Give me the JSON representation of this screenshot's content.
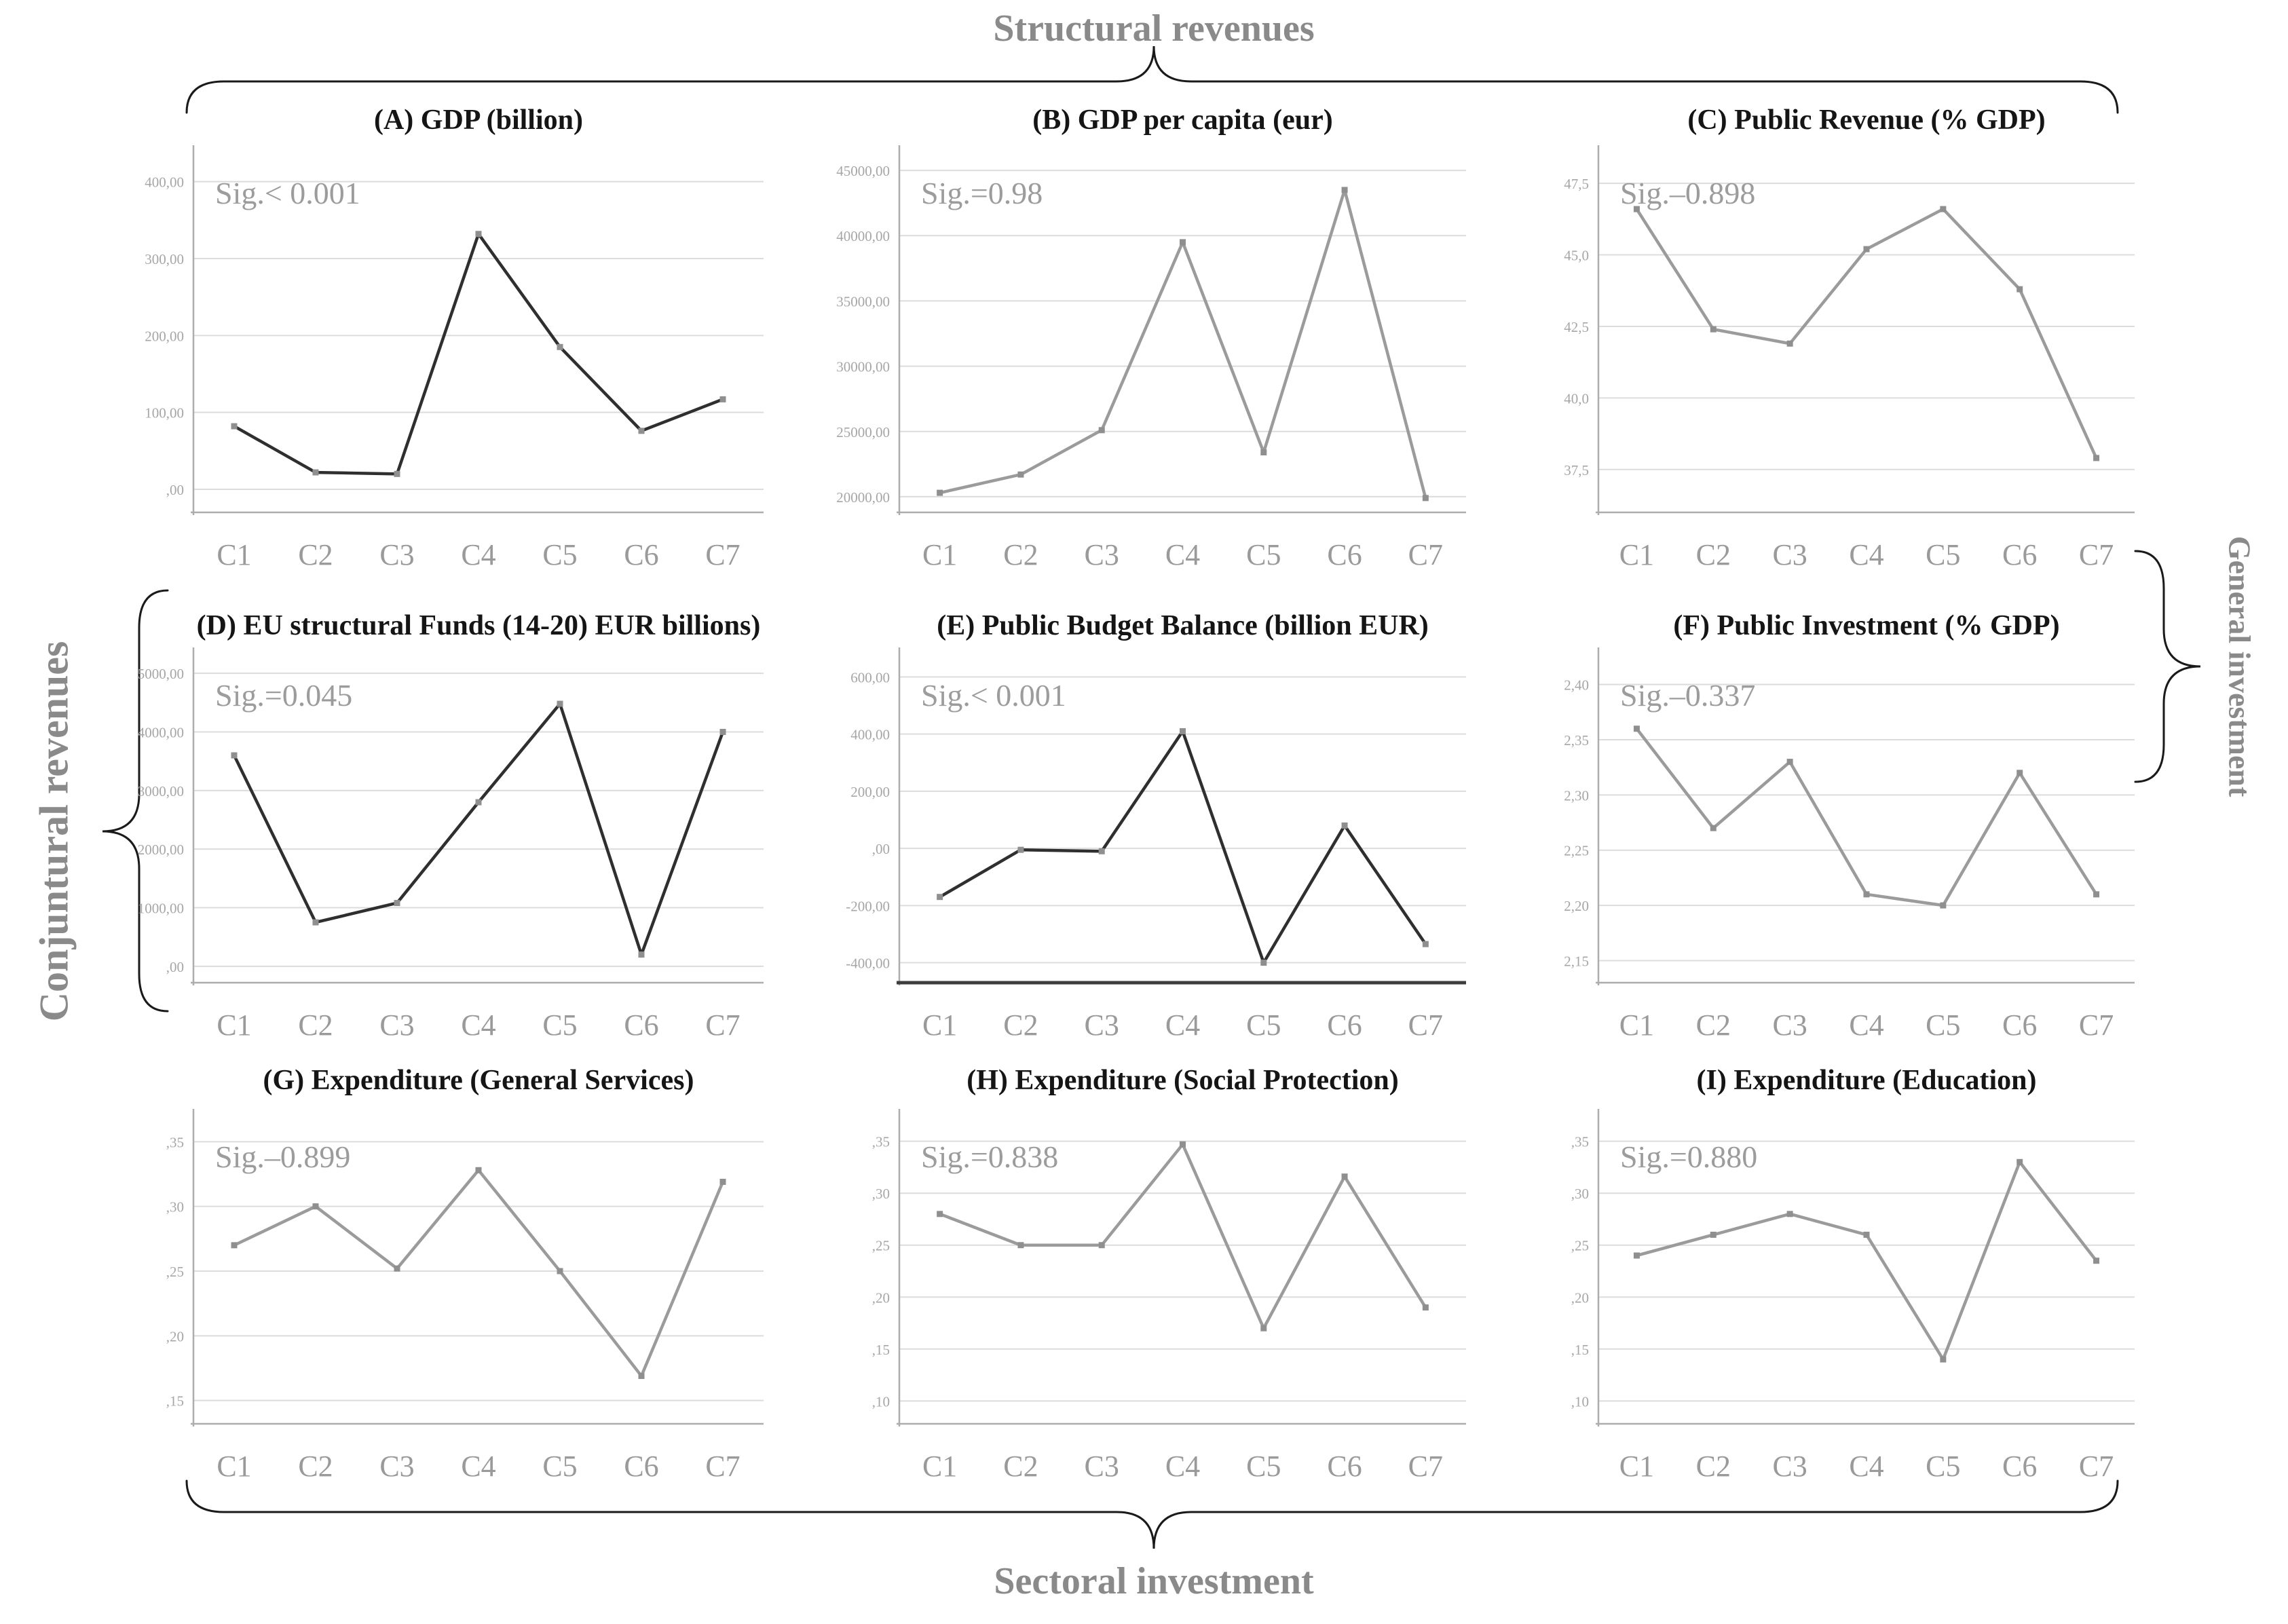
{
  "figure": {
    "top_label": "Structural revenues",
    "bottom_label": "Sectoral investment",
    "left_label": "Conjuntural revenues",
    "right_label": "General investment"
  },
  "colors": {
    "dark_line": "#2f2f2f",
    "gray_line": "#9b9b9b",
    "marker": "#8f8f8f",
    "grid": "#dcdcdc",
    "axis": "#adadad",
    "axis_strong": "#3d3d3d",
    "tick_text": "#a6a6a6",
    "xlabel_text": "#9a9a9a",
    "sig_text": "#9c9c9c",
    "title_text": "#151515",
    "brace": "#1a1a1a",
    "outer_label": "#8a8a8a"
  },
  "x_categories": [
    "C1",
    "C2",
    "C3",
    "C4",
    "C5",
    "C6",
    "C7"
  ],
  "chart_data": [
    {
      "id": "A",
      "type": "line",
      "title": "(A) GDP (billion)",
      "sig": "Sig.< 0.001",
      "categories": [
        "C1",
        "C2",
        "C3",
        "C4",
        "C5",
        "C6",
        "C7"
      ],
      "values": [
        82,
        22,
        20,
        332,
        185,
        76,
        117
      ],
      "ytick_labels": [
        "400,00",
        "300,00",
        "200,00",
        "100,00",
        ",00"
      ],
      "ytick_values": [
        400,
        300,
        200,
        100,
        0
      ],
      "ylim": [
        -30,
        435
      ],
      "line_color": "#2f2f2f",
      "axis_strong": false,
      "grid": true,
      "legend": "none"
    },
    {
      "id": "B",
      "type": "line",
      "title": "(B) GDP per capita (eur)",
      "sig": "Sig.=0.98",
      "categories": [
        "C1",
        "C2",
        "C3",
        "C4",
        "C5",
        "C6",
        "C7"
      ],
      "values": [
        20300,
        21700,
        25100,
        39500,
        23400,
        43500,
        19900
      ],
      "ytick_labels": [
        "45000,00",
        "40000,00",
        "35000,00",
        "30000,00",
        "25000,00",
        "20000,00"
      ],
      "ytick_values": [
        45000,
        40000,
        35000,
        30000,
        25000,
        20000
      ],
      "ylim": [
        18800,
        46200
      ],
      "line_color": "#9b9b9b",
      "axis_strong": false,
      "grid": true,
      "legend": "none"
    },
    {
      "id": "C",
      "type": "line",
      "title": "(C) Public Revenue (% GDP)",
      "sig": "Sig.–0.898",
      "categories": [
        "C1",
        "C2",
        "C3",
        "C4",
        "C5",
        "C6",
        "C7"
      ],
      "values": [
        46.6,
        42.4,
        41.9,
        45.2,
        46.6,
        43.8,
        37.9
      ],
      "ytick_labels": [
        "47,5",
        "45,0",
        "42,5",
        "40,0",
        "37,5"
      ],
      "ytick_values": [
        47.5,
        45.0,
        42.5,
        40.0,
        37.5
      ],
      "ylim": [
        36.0,
        48.5
      ],
      "line_color": "#9b9b9b",
      "axis_strong": false,
      "grid": true,
      "legend": "none"
    },
    {
      "id": "D",
      "type": "line",
      "title": "(D) EU structural Funds (14-20) EUR billions)",
      "sig": "Sig.=0.045",
      "categories": [
        "C1",
        "C2",
        "C3",
        "C4",
        "C5",
        "C6",
        "C7"
      ],
      "values": [
        3600,
        750,
        1080,
        2800,
        4480,
        200,
        4000
      ],
      "ytick_labels": [
        "5000,00",
        "4000,00",
        "3000,00",
        "2000,00",
        "1000,00",
        ",00"
      ],
      "ytick_values": [
        5000,
        4000,
        3000,
        2000,
        1000,
        0
      ],
      "ylim": [
        -280,
        5280
      ],
      "line_color": "#2f2f2f",
      "axis_strong": false,
      "grid": true,
      "legend": "none"
    },
    {
      "id": "E",
      "type": "line",
      "title": "(E) Public Budget Balance (billion EUR)",
      "sig": "Sig.< 0.001",
      "categories": [
        "C1",
        "C2",
        "C3",
        "C4",
        "C5",
        "C6",
        "C7"
      ],
      "values": [
        -170,
        -5,
        -10,
        410,
        -400,
        80,
        -335
      ],
      "ytick_labels": [
        "600,00",
        "400,00",
        "200,00",
        ",00",
        "-200,00",
        "-400,00"
      ],
      "ytick_values": [
        600,
        400,
        200,
        0,
        -200,
        -400
      ],
      "ylim": [
        -470,
        670
      ],
      "line_color": "#2f2f2f",
      "axis_strong": true,
      "grid": true,
      "legend": "none"
    },
    {
      "id": "F",
      "type": "line",
      "title": "(F) Public Investment (% GDP)",
      "sig": "Sig.–0.337",
      "categories": [
        "C1",
        "C2",
        "C3",
        "C4",
        "C5",
        "C6",
        "C7"
      ],
      "values": [
        2.36,
        2.27,
        2.33,
        2.21,
        2.2,
        2.32,
        2.21
      ],
      "ytick_labels": [
        "2,40",
        "2,35",
        "2,30",
        "2,25",
        "2,20",
        "2,15"
      ],
      "ytick_values": [
        2.4,
        2.35,
        2.3,
        2.25,
        2.2,
        2.15
      ],
      "ylim": [
        2.13,
        2.425
      ],
      "line_color": "#9b9b9b",
      "axis_strong": false,
      "grid": true,
      "legend": "none"
    },
    {
      "id": "G",
      "type": "line",
      "title": "(G) Expenditure (General Services)",
      "sig": "Sig.–0.899",
      "categories": [
        "C1",
        "C2",
        "C3",
        "C4",
        "C5",
        "C6",
        "C7"
      ],
      "values": [
        0.27,
        0.3,
        0.252,
        0.328,
        0.25,
        0.169,
        0.319
      ],
      "ytick_labels": [
        ",35",
        ",30",
        ",25",
        ",20",
        ",15"
      ],
      "ytick_values": [
        0.35,
        0.3,
        0.25,
        0.2,
        0.15
      ],
      "ylim": [
        0.132,
        0.368
      ],
      "line_color": "#9b9b9b",
      "axis_strong": false,
      "grid": true,
      "legend": "none"
    },
    {
      "id": "H",
      "type": "line",
      "title": "(H) Expenditure (Social Protection)",
      "sig": "Sig.=0.838",
      "categories": [
        "C1",
        "C2",
        "C3",
        "C4",
        "C5",
        "C6",
        "C7"
      ],
      "values": [
        0.28,
        0.25,
        0.25,
        0.347,
        0.17,
        0.316,
        0.19
      ],
      "ytick_labels": [
        ",35",
        ",30",
        ",25",
        ",20",
        ",15",
        ",10"
      ],
      "ytick_values": [
        0.35,
        0.3,
        0.25,
        0.2,
        0.15,
        0.1
      ],
      "ylim": [
        0.078,
        0.372
      ],
      "line_color": "#9b9b9b",
      "axis_strong": false,
      "grid": true,
      "legend": "none"
    },
    {
      "id": "I",
      "type": "line",
      "title": "(I) Expenditure (Education)",
      "sig": "Sig.=0.880",
      "categories": [
        "C1",
        "C2",
        "C3",
        "C4",
        "C5",
        "C6",
        "C7"
      ],
      "values": [
        0.24,
        0.26,
        0.28,
        0.26,
        0.14,
        0.33,
        0.235
      ],
      "ytick_labels": [
        ",35",
        ",30",
        ",25",
        ",20",
        ",15",
        ",10"
      ],
      "ytick_values": [
        0.35,
        0.3,
        0.25,
        0.2,
        0.15,
        0.1
      ],
      "ylim": [
        0.078,
        0.372
      ],
      "line_color": "#9b9b9b",
      "axis_strong": false,
      "grid": true,
      "legend": "none"
    }
  ]
}
